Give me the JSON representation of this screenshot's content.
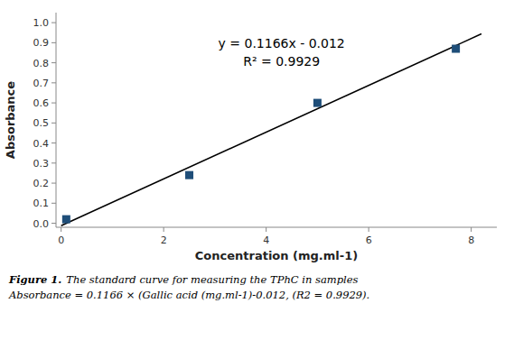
{
  "chart_data": {
    "type": "scatter",
    "xlabel": "Concentration (mg.ml-1)",
    "ylabel": "Absorbance",
    "xlim": [
      -0.1,
      8.5
    ],
    "ylim": [
      -0.02,
      1.05
    ],
    "xticks": [
      0,
      2,
      4,
      6,
      8
    ],
    "yticks": [
      {
        "value": 0,
        "label": "0.0"
      },
      0.1,
      0.2,
      0.3,
      0.4,
      0.5,
      0.6,
      0.7,
      0.8,
      0.9,
      {
        "value": 1,
        "label": "1.0"
      }
    ],
    "grid": false,
    "series": [
      {
        "type": "scatter",
        "x": [
          0.1,
          2.5,
          5.0,
          7.7
        ],
        "values": [
          0.02,
          0.24,
          0.6,
          0.87
        ],
        "color": "#1F4E79",
        "marker": "square"
      },
      {
        "type": "line",
        "x": [
          0.0,
          8.2
        ],
        "values": [
          -0.012,
          0.94412
        ],
        "color": "#000000",
        "line_style": "solid"
      }
    ],
    "annotations": [
      {
        "text": "y = 0.1166x - 0.012",
        "x": 4.3,
        "y": 0.86
      },
      {
        "text": "R² = 0.9929",
        "x": 4.3,
        "y": 0.77
      }
    ],
    "caption_label": "Figure 1.",
    "caption": [
      "The standard curve for measuring the TPhC in samples",
      "Absorbance = 0.1166 × (Gallic acid (mg.ml-1)-0.012, (R2 = 0.9929)."
    ]
  }
}
